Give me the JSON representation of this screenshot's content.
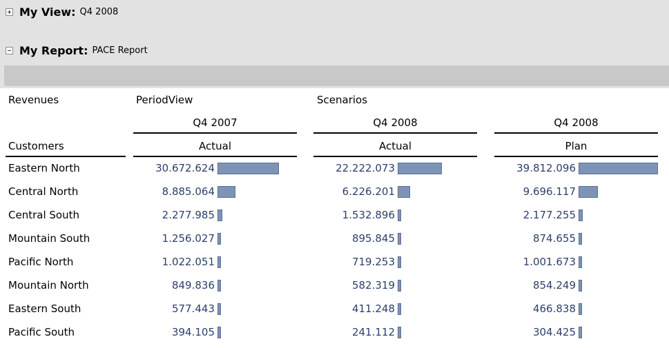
{
  "panels": {
    "view": {
      "label": "My View:",
      "value": "Q4 2008",
      "expander_icon": "plus-box-icon"
    },
    "report": {
      "label": "My Report:",
      "value": "PACE Report",
      "expander_icon": "minus-box-icon"
    }
  },
  "table": {
    "measure_label": "Revenues",
    "dim1_label": "PeriodView",
    "dim2_label": "Scenarios",
    "row_dim_label": "Customers",
    "columns": [
      {
        "period": "Q4 2007",
        "scenario": "Actual"
      },
      {
        "period": "Q4 2008",
        "scenario": "Actual"
      },
      {
        "period": "Q4 2008",
        "scenario": "Plan"
      }
    ],
    "rows": [
      {
        "name": "Eastern North",
        "values": [
          "30.672.624",
          "22.222.073",
          "39.812.096"
        ]
      },
      {
        "name": "Central North",
        "values": [
          "8.885.064",
          "6.226.201",
          "9.696.117"
        ]
      },
      {
        "name": "Central South",
        "values": [
          "2.277.985",
          "1.532.896",
          "2.177.255"
        ]
      },
      {
        "name": "Mountain South",
        "values": [
          "1.256.027",
          "895.845",
          "874.655"
        ]
      },
      {
        "name": "Pacific North",
        "values": [
          "1.022.051",
          "719.253",
          "1.001.673"
        ]
      },
      {
        "name": "Mountain North",
        "values": [
          "849.836",
          "582.319",
          "854.249"
        ]
      },
      {
        "name": "Eastern South",
        "values": [
          "577.443",
          "411.248",
          "466.838"
        ]
      },
      {
        "name": "Pacific South",
        "values": [
          "394.105",
          "241.112",
          "304.425"
        ]
      }
    ],
    "bar_max_value": 39812096,
    "bar_color": "#7d94b7"
  }
}
